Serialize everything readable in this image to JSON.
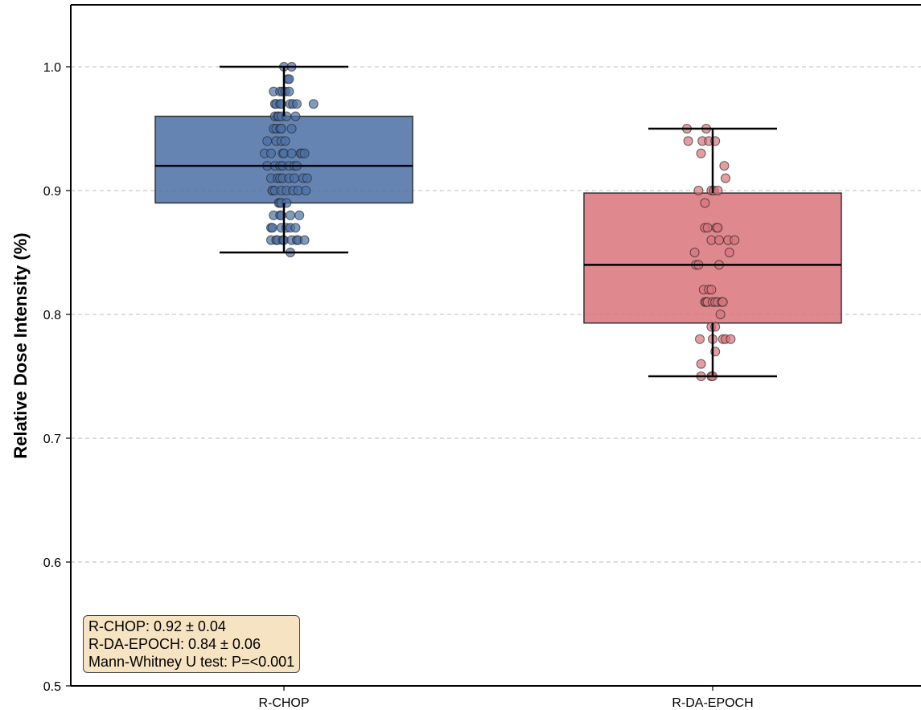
{
  "chart_data": {
    "type": "box",
    "ylabel": "Relative Dose Intensity (%)",
    "xlabel": "",
    "ylim": [
      0.5,
      1.05
    ],
    "yticks": [
      "0.5",
      "0.6",
      "0.7",
      "0.8",
      "0.9",
      "1.0"
    ],
    "grid": "horizontal dashed",
    "categories": [
      "R-CHOP",
      "R-DA-EPOCH"
    ],
    "series": [
      {
        "category": "R-CHOP",
        "color": "#4a6fa5",
        "box": {
          "whisker_low": 0.85,
          "q1": 0.89,
          "median": 0.92,
          "q3": 0.96,
          "whisker_high": 1.0
        },
        "points": [
          {
            "x": 0,
            "y": 1.0
          },
          {
            "x": 0.06,
            "y": 1.0
          },
          {
            "x": 0.03,
            "y": 0.99
          },
          {
            "x": 0.04,
            "y": 0.99
          },
          {
            "x": -0.08,
            "y": 0.98
          },
          {
            "x": -0.03,
            "y": 0.98
          },
          {
            "x": -0.01,
            "y": 0.98
          },
          {
            "x": 0.01,
            "y": 0.98
          },
          {
            "x": 0.04,
            "y": 0.98
          },
          {
            "x": -0.07,
            "y": 0.97
          },
          {
            "x": -0.06,
            "y": 0.97
          },
          {
            "x": -0.03,
            "y": 0.97
          },
          {
            "x": -0.02,
            "y": 0.97
          },
          {
            "x": 0.05,
            "y": 0.97
          },
          {
            "x": 0.07,
            "y": 0.97
          },
          {
            "x": 0.1,
            "y": 0.97
          },
          {
            "x": 0.23,
            "y": 0.97
          },
          {
            "x": -0.07,
            "y": 0.96
          },
          {
            "x": -0.05,
            "y": 0.96
          },
          {
            "x": -0.04,
            "y": 0.96
          },
          {
            "x": -0.02,
            "y": 0.96
          },
          {
            "x": 0.02,
            "y": 0.96
          },
          {
            "x": 0.09,
            "y": 0.96
          },
          {
            "x": -0.08,
            "y": 0.95
          },
          {
            "x": -0.06,
            "y": 0.95
          },
          {
            "x": -0.03,
            "y": 0.95
          },
          {
            "x": -0.02,
            "y": 0.95
          },
          {
            "x": 0.06,
            "y": 0.95
          },
          {
            "x": -0.13,
            "y": 0.94
          },
          {
            "x": -0.06,
            "y": 0.94
          },
          {
            "x": -0.02,
            "y": 0.94
          },
          {
            "x": 0.01,
            "y": 0.94
          },
          {
            "x": -0.15,
            "y": 0.93
          },
          {
            "x": -0.1,
            "y": 0.93
          },
          {
            "x": -0.01,
            "y": 0.93
          },
          {
            "x": 0.0,
            "y": 0.93
          },
          {
            "x": 0.06,
            "y": 0.93
          },
          {
            "x": 0.13,
            "y": 0.93
          },
          {
            "x": 0.14,
            "y": 0.93
          },
          {
            "x": 0.16,
            "y": 0.93
          },
          {
            "x": -0.13,
            "y": 0.92
          },
          {
            "x": -0.07,
            "y": 0.92
          },
          {
            "x": -0.03,
            "y": 0.92
          },
          {
            "x": -0.01,
            "y": 0.92
          },
          {
            "x": 0.04,
            "y": 0.92
          },
          {
            "x": 0.08,
            "y": 0.92
          },
          {
            "x": 0.1,
            "y": 0.92
          },
          {
            "x": -0.1,
            "y": 0.91
          },
          {
            "x": -0.05,
            "y": 0.91
          },
          {
            "x": -0.03,
            "y": 0.91
          },
          {
            "x": -0.01,
            "y": 0.91
          },
          {
            "x": 0.04,
            "y": 0.91
          },
          {
            "x": 0.08,
            "y": 0.91
          },
          {
            "x": 0.15,
            "y": 0.91
          },
          {
            "x": 0.18,
            "y": 0.91
          },
          {
            "x": -0.09,
            "y": 0.9
          },
          {
            "x": -0.09,
            "y": 0.9
          },
          {
            "x": -0.07,
            "y": 0.9
          },
          {
            "x": -0.02,
            "y": 0.9
          },
          {
            "x": 0.02,
            "y": 0.9
          },
          {
            "x": 0.07,
            "y": 0.9
          },
          {
            "x": 0.11,
            "y": 0.9
          },
          {
            "x": 0.17,
            "y": 0.9
          },
          {
            "x": -0.04,
            "y": 0.89
          },
          {
            "x": -0.03,
            "y": 0.89
          },
          {
            "x": -0.02,
            "y": 0.89
          },
          {
            "x": 0.02,
            "y": 0.89
          },
          {
            "x": -0.08,
            "y": 0.88
          },
          {
            "x": -0.03,
            "y": 0.88
          },
          {
            "x": -0.02,
            "y": 0.88
          },
          {
            "x": 0.05,
            "y": 0.88
          },
          {
            "x": 0.12,
            "y": 0.88
          },
          {
            "x": -0.1,
            "y": 0.87
          },
          {
            "x": -0.09,
            "y": 0.87
          },
          {
            "x": -0.02,
            "y": 0.87
          },
          {
            "x": 0.02,
            "y": 0.87
          },
          {
            "x": 0.05,
            "y": 0.87
          },
          {
            "x": 0.09,
            "y": 0.87
          },
          {
            "x": -0.1,
            "y": 0.86
          },
          {
            "x": -0.06,
            "y": 0.86
          },
          {
            "x": -0.05,
            "y": 0.86
          },
          {
            "x": -0.01,
            "y": 0.86
          },
          {
            "x": 0.0,
            "y": 0.86
          },
          {
            "x": 0.06,
            "y": 0.86
          },
          {
            "x": 0.1,
            "y": 0.86
          },
          {
            "x": 0.11,
            "y": 0.86
          },
          {
            "x": 0.16,
            "y": 0.86
          },
          {
            "x": 0.05,
            "y": 0.85
          }
        ]
      },
      {
        "category": "R-DA-EPOCH",
        "color": "#d9737a",
        "box": {
          "whisker_low": 0.75,
          "q1": 0.793,
          "median": 0.84,
          "q3": 0.898,
          "whisker_high": 0.95
        },
        "points": [
          {
            "x": -0.2,
            "y": 0.95
          },
          {
            "x": -0.05,
            "y": 0.95
          },
          {
            "x": -0.19,
            "y": 0.94
          },
          {
            "x": -0.08,
            "y": 0.94
          },
          {
            "x": -0.03,
            "y": 0.94
          },
          {
            "x": 0.02,
            "y": 0.94
          },
          {
            "x": -0.09,
            "y": 0.93
          },
          {
            "x": 0.09,
            "y": 0.92
          },
          {
            "x": 0.1,
            "y": 0.91
          },
          {
            "x": -0.11,
            "y": 0.9
          },
          {
            "x": -0.01,
            "y": 0.9
          },
          {
            "x": 0.01,
            "y": 0.9
          },
          {
            "x": 0.04,
            "y": 0.9
          },
          {
            "x": -0.06,
            "y": 0.89
          },
          {
            "x": -0.06,
            "y": 0.87
          },
          {
            "x": -0.04,
            "y": 0.87
          },
          {
            "x": 0.03,
            "y": 0.87
          },
          {
            "x": 0.04,
            "y": 0.87
          },
          {
            "x": -0.01,
            "y": 0.86
          },
          {
            "x": 0.05,
            "y": 0.86
          },
          {
            "x": 0.12,
            "y": 0.86
          },
          {
            "x": 0.17,
            "y": 0.86
          },
          {
            "x": -0.14,
            "y": 0.85
          },
          {
            "x": 0.13,
            "y": 0.85
          },
          {
            "x": -0.13,
            "y": 0.84
          },
          {
            "x": -0.11,
            "y": 0.84
          },
          {
            "x": 0.05,
            "y": 0.84
          },
          {
            "x": -0.07,
            "y": 0.82
          },
          {
            "x": -0.03,
            "y": 0.82
          },
          {
            "x": -0.01,
            "y": 0.82
          },
          {
            "x": -0.06,
            "y": 0.81
          },
          {
            "x": -0.05,
            "y": 0.81
          },
          {
            "x": -0.04,
            "y": 0.81
          },
          {
            "x": 0.0,
            "y": 0.81
          },
          {
            "x": 0.02,
            "y": 0.81
          },
          {
            "x": 0.04,
            "y": 0.81
          },
          {
            "x": 0.07,
            "y": 0.81
          },
          {
            "x": 0.08,
            "y": 0.81
          },
          {
            "x": 0.06,
            "y": 0.8
          },
          {
            "x": -0.01,
            "y": 0.79
          },
          {
            "x": 0.02,
            "y": 0.79
          },
          {
            "x": -0.1,
            "y": 0.78
          },
          {
            "x": 0.0,
            "y": 0.78
          },
          {
            "x": 0.08,
            "y": 0.78
          },
          {
            "x": 0.1,
            "y": 0.78
          },
          {
            "x": 0.14,
            "y": 0.78
          },
          {
            "x": 0.02,
            "y": 0.77
          },
          {
            "x": -0.09,
            "y": 0.76
          },
          {
            "x": -0.09,
            "y": 0.75
          },
          {
            "x": -0.01,
            "y": 0.75
          },
          {
            "x": 0.0,
            "y": 0.75
          }
        ]
      }
    ],
    "annotation": [
      "R-CHOP: 0.92 ± 0.04",
      "R-DA-EPOCH: 0.84 ± 0.06",
      "Mann-Whitney U test: P=<0.001"
    ]
  }
}
